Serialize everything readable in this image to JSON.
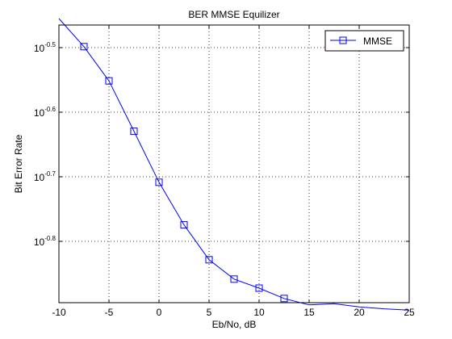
{
  "chart_data": {
    "type": "line",
    "title": "BER MMSE Equilizer",
    "xlabel": "Eb/No, dB",
    "ylabel": "Bit Error Rate",
    "xlim": [
      -10,
      25
    ],
    "ylim_log10": [
      -0.895,
      -0.465
    ],
    "yscale": "log",
    "grid": true,
    "legend_position": "top-right",
    "x_ticks": [
      {
        "value": -10,
        "label": "-10"
      },
      {
        "value": -5,
        "label": "-5"
      },
      {
        "value": 0,
        "label": "0"
      },
      {
        "value": 5,
        "label": "5"
      },
      {
        "value": 10,
        "label": "10"
      },
      {
        "value": 15,
        "label": "15"
      },
      {
        "value": 20,
        "label": "20"
      },
      {
        "value": 25,
        "label": "25"
      }
    ],
    "y_ticks": [
      {
        "log10": -0.5,
        "base": "10",
        "exp": "-0.5"
      },
      {
        "log10": -0.6,
        "base": "10",
        "exp": "-0.6"
      },
      {
        "log10": -0.7,
        "base": "10",
        "exp": "-0.7"
      },
      {
        "log10": -0.8,
        "base": "10",
        "exp": "-0.8"
      }
    ],
    "series": [
      {
        "name": "MMSE",
        "color": "#0000ff",
        "marker": "square",
        "x": [
          -10,
          -7.5,
          -5,
          -2.5,
          0,
          2.5,
          5,
          7.5,
          10,
          12.5,
          15,
          17.5,
          20,
          22.5,
          25
        ],
        "y_log10": [
          -0.455,
          -0.4985,
          -0.5515,
          -0.6295,
          -0.7085,
          -0.7745,
          -0.8285,
          -0.8585,
          -0.8725,
          -0.8885,
          -0.8985,
          -0.8965,
          -0.9015,
          -0.9045,
          -0.9065
        ]
      }
    ]
  }
}
